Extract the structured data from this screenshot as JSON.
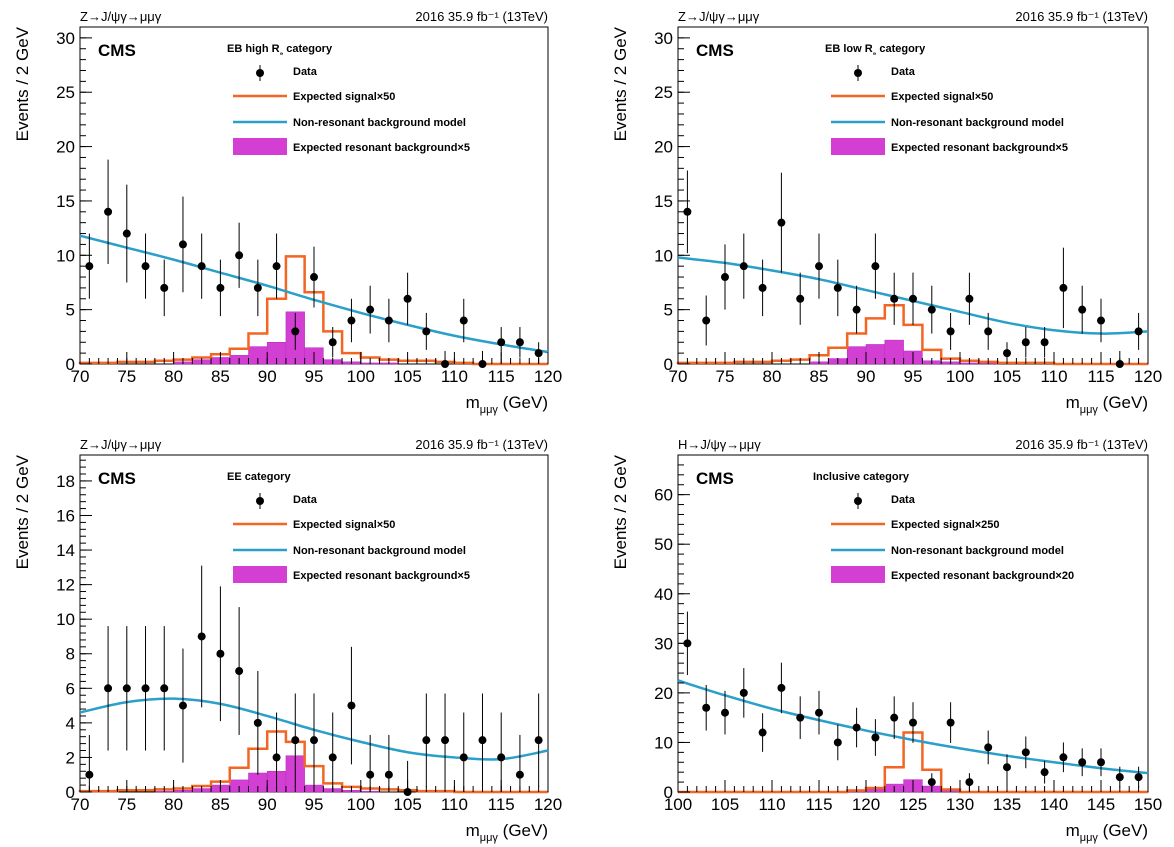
{
  "colors": {
    "signal": "#f26522",
    "background_model": "#2a9fc9",
    "resonant_fill": "#d23fd2",
    "resonant_edge": "#b030c0",
    "data": "#000000"
  },
  "chart_data": [
    {
      "type": "histogram",
      "header_left": "Z→J/ψγ→μμγ",
      "header_right": "2016 35.9 fb⁻¹ (13TeV)",
      "experiment": "CMS",
      "category": "EB high R₉ category",
      "xlabel": "m_μμγ (GeV)",
      "ylabel": "Events / 2 GeV",
      "xlim": [
        70,
        120
      ],
      "ylim": [
        0,
        31
      ],
      "xticks": [
        70,
        75,
        80,
        85,
        90,
        95,
        100,
        105,
        110,
        115,
        120
      ],
      "yticks": [
        0,
        5,
        10,
        15,
        20,
        25,
        30
      ],
      "legend": [
        "Data",
        "Expected signal×50",
        "Non-resonant background model",
        "Expected resonant background×5"
      ],
      "data_x": [
        71,
        73,
        75,
        77,
        79,
        81,
        83,
        85,
        87,
        89,
        91,
        93,
        95,
        97,
        99,
        101,
        103,
        105,
        107,
        109,
        111,
        113,
        115,
        117,
        119
      ],
      "data_y": [
        9,
        14,
        12,
        9,
        7,
        11,
        9,
        7,
        10,
        7,
        9,
        3,
        8,
        2,
        4,
        5,
        4,
        6,
        3,
        0,
        4,
        0,
        2,
        2,
        1
      ],
      "data_err": [
        3.0,
        4.8,
        4.5,
        3.0,
        2.6,
        4.4,
        3.0,
        2.6,
        3.0,
        2.6,
        3.0,
        1.7,
        2.8,
        1.4,
        2.0,
        2.2,
        2.0,
        2.4,
        1.7,
        1.2,
        2.0,
        1.2,
        1.4,
        1.4,
        1.0
      ],
      "bin_edges": [
        70,
        72,
        74,
        76,
        78,
        80,
        82,
        84,
        86,
        88,
        90,
        92,
        94,
        96,
        98,
        100,
        102,
        104,
        106,
        108,
        110,
        112,
        114,
        116,
        118,
        120
      ],
      "signal": [
        0.1,
        0.1,
        0.2,
        0.2,
        0.3,
        0.4,
        0.6,
        0.9,
        1.4,
        2.8,
        6.0,
        9.9,
        6.6,
        3.0,
        1.0,
        0.6,
        0.4,
        0.3,
        0.3,
        0.2,
        0.1,
        0,
        0,
        0,
        0
      ],
      "resonant": [
        0,
        0,
        0,
        0,
        0,
        0.2,
        0.4,
        0.6,
        0.8,
        1.6,
        2.0,
        4.8,
        1.5,
        0.4,
        0.2,
        0.1,
        0.1,
        0,
        0,
        0,
        0,
        0,
        0,
        0,
        0
      ],
      "bkg_curve": {
        "x": [
          70,
          75,
          80,
          85,
          90,
          95,
          100,
          105,
          110,
          115,
          120
        ],
        "y": [
          11.8,
          10.7,
          9.6,
          8.4,
          7.2,
          5.9,
          4.7,
          3.6,
          2.6,
          1.8,
          1.1
        ]
      }
    },
    {
      "type": "histogram",
      "header_left": "Z→J/ψγ→μμγ",
      "header_right": "2016 35.9 fb⁻¹ (13TeV)",
      "experiment": "CMS",
      "category": "EB low R₉ category",
      "xlabel": "m_μμγ (GeV)",
      "ylabel": "Events / 2 GeV",
      "xlim": [
        70,
        120
      ],
      "ylim": [
        0,
        31
      ],
      "xticks": [
        70,
        75,
        80,
        85,
        90,
        95,
        100,
        105,
        110,
        115,
        120
      ],
      "yticks": [
        0,
        5,
        10,
        15,
        20,
        25,
        30
      ],
      "legend": [
        "Data",
        "Expected signal×50",
        "Non-resonant background model",
        "Expected resonant background×5"
      ],
      "data_x": [
        71,
        73,
        75,
        77,
        79,
        81,
        83,
        85,
        87,
        89,
        91,
        93,
        95,
        97,
        99,
        101,
        103,
        105,
        107,
        109,
        111,
        113,
        115,
        117,
        119
      ],
      "data_y": [
        14,
        4,
        8,
        9,
        7,
        13,
        6,
        9,
        7,
        5,
        9,
        6,
        6,
        5,
        3,
        6,
        3,
        1,
        2,
        2,
        7,
        5,
        4,
        0,
        3
      ],
      "data_err": [
        3.8,
        2.3,
        3.0,
        3.0,
        2.6,
        4.6,
        2.4,
        3.0,
        2.6,
        2.2,
        3.0,
        2.4,
        2.4,
        2.2,
        1.7,
        2.4,
        1.7,
        1.0,
        1.4,
        1.4,
        3.7,
        2.2,
        2.0,
        1.2,
        1.7
      ],
      "bin_edges": [
        70,
        72,
        74,
        76,
        78,
        80,
        82,
        84,
        86,
        88,
        90,
        92,
        94,
        96,
        98,
        100,
        102,
        104,
        106,
        108,
        110,
        112,
        114,
        116,
        118,
        120
      ],
      "signal": [
        0.1,
        0.1,
        0.1,
        0.2,
        0.2,
        0.3,
        0.4,
        0.8,
        1.5,
        2.8,
        4.2,
        5.4,
        3.6,
        1.3,
        0.5,
        0.3,
        0.2,
        0.1,
        0.1,
        0.1,
        0,
        0,
        0,
        0,
        0
      ],
      "resonant": [
        0,
        0,
        0,
        0,
        0,
        0,
        0,
        0.2,
        0.5,
        1.6,
        1.8,
        2.2,
        1.2,
        0.3,
        0.2,
        0.1,
        0.1,
        0,
        0,
        0,
        0,
        0,
        0,
        0,
        0
      ],
      "bkg_curve": {
        "x": [
          70,
          75,
          80,
          85,
          90,
          95,
          100,
          105,
          110,
          115,
          120
        ],
        "y": [
          9.8,
          9.3,
          8.6,
          7.8,
          6.8,
          5.8,
          4.8,
          3.8,
          3.1,
          2.8,
          3.0
        ]
      }
    },
    {
      "type": "histogram",
      "header_left": "Z→J/ψγ→μμγ",
      "header_right": "2016 35.9 fb⁻¹ (13TeV)",
      "experiment": "CMS",
      "category": "EE category",
      "xlabel": "m_μμγ (GeV)",
      "ylabel": "Events / 2 GeV",
      "xlim": [
        70,
        120
      ],
      "ylim": [
        0,
        19.5
      ],
      "xticks": [
        70,
        75,
        80,
        85,
        90,
        95,
        100,
        105,
        110,
        115,
        120
      ],
      "yticks": [
        0,
        2,
        4,
        6,
        8,
        10,
        12,
        14,
        16,
        18
      ],
      "legend": [
        "Data",
        "Expected signal×50",
        "Non-resonant background model",
        "Expected resonant background×5"
      ],
      "data_x": [
        71,
        73,
        75,
        77,
        79,
        81,
        83,
        85,
        87,
        89,
        91,
        93,
        95,
        97,
        99,
        101,
        103,
        105,
        107,
        109,
        111,
        113,
        115,
        117,
        119
      ],
      "data_y": [
        1,
        6,
        6,
        6,
        6,
        5,
        9,
        8,
        7,
        4,
        2,
        3,
        3,
        2,
        5,
        1,
        1,
        0,
        3,
        3,
        2,
        3,
        2,
        1,
        3
      ],
      "data_err": [
        2.3,
        3.6,
        3.6,
        3.6,
        3.6,
        3.3,
        4.1,
        3.9,
        3.7,
        3.0,
        2.6,
        2.7,
        2.7,
        2.6,
        3.4,
        2.3,
        2.3,
        1.8,
        2.7,
        2.7,
        2.6,
        2.7,
        2.6,
        2.3,
        2.7
      ],
      "bin_edges": [
        70,
        72,
        74,
        76,
        78,
        80,
        82,
        84,
        86,
        88,
        90,
        92,
        94,
        96,
        98,
        100,
        102,
        104,
        106,
        108,
        110,
        112,
        114,
        116,
        118,
        120
      ],
      "signal": [
        0.05,
        0.05,
        0.1,
        0.1,
        0.15,
        0.2,
        0.35,
        0.6,
        1.4,
        2.5,
        3.5,
        2.9,
        1.5,
        0.5,
        0.3,
        0.2,
        0.15,
        0.1,
        0.05,
        0.05,
        0,
        0,
        0,
        0,
        0
      ],
      "resonant": [
        0,
        0,
        0,
        0,
        0.05,
        0.1,
        0.2,
        0.4,
        0.7,
        1.1,
        1.2,
        2.1,
        0.4,
        0.2,
        0.1,
        0.05,
        0,
        0,
        0,
        0,
        0,
        0,
        0,
        0,
        0
      ],
      "bkg_curve": {
        "x": [
          70,
          75,
          80,
          85,
          90,
          95,
          100,
          105,
          110,
          115,
          120
        ],
        "y": [
          4.6,
          5.2,
          5.4,
          5.1,
          4.4,
          3.6,
          2.9,
          2.3,
          2.0,
          1.9,
          2.4
        ]
      }
    },
    {
      "type": "histogram",
      "header_left": "H→J/ψγ→μμγ",
      "header_right": "2016 35.9 fb⁻¹ (13TeV)",
      "experiment": "CMS",
      "category": "Inclusive category",
      "xlabel": "m_μμγ (GeV)",
      "ylabel": "Events / 2 GeV",
      "xlim": [
        100,
        150
      ],
      "ylim": [
        0,
        68
      ],
      "xticks": [
        100,
        105,
        110,
        115,
        120,
        125,
        130,
        135,
        140,
        145,
        150
      ],
      "yticks": [
        0,
        10,
        20,
        30,
        40,
        50,
        60
      ],
      "legend": [
        "Data",
        "Expected signal×250",
        "Non-resonant background model",
        "Expected resonant background×20"
      ],
      "data_x": [
        101,
        103,
        105,
        107,
        109,
        111,
        113,
        115,
        117,
        119,
        121,
        123,
        125,
        127,
        129,
        131,
        133,
        135,
        137,
        139,
        141,
        143,
        145,
        147,
        149
      ],
      "data_y": [
        30,
        17,
        16,
        20,
        12,
        21,
        15,
        16,
        10,
        13,
        11,
        15,
        14,
        2,
        14,
        2,
        9,
        5,
        8,
        4,
        7,
        6,
        6,
        3,
        3
      ],
      "data_err": [
        6.4,
        4.6,
        4.4,
        5.0,
        3.9,
        5.1,
        4.3,
        4.4,
        3.6,
        4.0,
        3.7,
        4.3,
        4.1,
        1.8,
        4.1,
        1.8,
        3.4,
        2.6,
        3.2,
        2.3,
        3.0,
        2.8,
        2.8,
        2.1,
        2.1
      ],
      "bin_edges": [
        100,
        102,
        104,
        106,
        108,
        110,
        112,
        114,
        116,
        118,
        120,
        122,
        124,
        126,
        128,
        130,
        132,
        134,
        136,
        138,
        140,
        142,
        144,
        146,
        148,
        150
      ],
      "signal": [
        0,
        0,
        0,
        0,
        0,
        0,
        0,
        0,
        0,
        0.3,
        0.8,
        5.0,
        12.0,
        4.5,
        0.5,
        0,
        0,
        0,
        0,
        0,
        0,
        0,
        0,
        0,
        0
      ],
      "resonant": [
        0,
        0,
        0,
        0,
        0,
        0,
        0,
        0,
        0,
        0.2,
        0.6,
        1.6,
        2.5,
        1.2,
        0.3,
        0,
        0,
        0,
        0,
        0,
        0,
        0,
        0,
        0,
        0
      ],
      "bkg_curve": {
        "x": [
          100,
          105,
          110,
          115,
          120,
          125,
          130,
          135,
          140,
          145,
          150
        ],
        "y": [
          22.5,
          19.5,
          16.8,
          14.5,
          12.4,
          10.5,
          8.8,
          7.3,
          6.0,
          4.8,
          3.8
        ]
      }
    }
  ]
}
